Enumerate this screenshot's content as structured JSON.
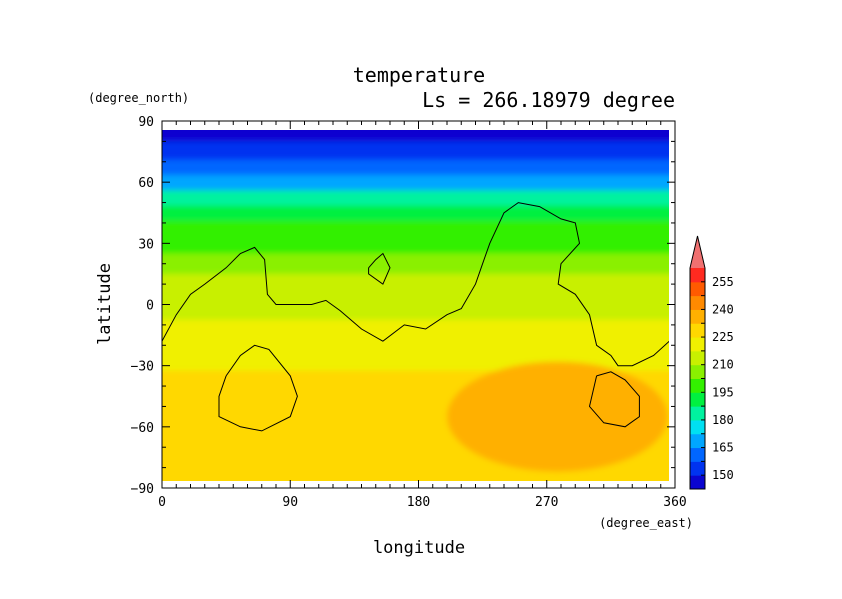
{
  "chart_data": {
    "type": "heatmap",
    "title": "temperature",
    "subtitle": "Ls = 266.18979 degree",
    "xlabel": "longitude",
    "ylabel": "latitude",
    "x_units": "(degree_east)",
    "y_units": "(degree_north)",
    "xlim": [
      0,
      360
    ],
    "ylim": [
      -90,
      90
    ],
    "x_ticks": [
      0,
      90,
      180,
      270,
      360
    ],
    "y_ticks": [
      90,
      60,
      30,
      0,
      -30,
      -60,
      -90
    ],
    "x_tick_labels": [
      "0",
      "90",
      "180",
      "270",
      "360"
    ],
    "y_tick_labels": [
      "90",
      "60",
      "30",
      "0",
      "−30",
      "−60",
      "−90"
    ],
    "colorbar": {
      "labels": [
        "255",
        "240",
        "225",
        "210",
        "195",
        "180",
        "165",
        "150"
      ],
      "min": 142.5,
      "max": 262.5,
      "step": 7.5,
      "extend": "max",
      "colors": [
        "#0a05d0",
        "#0033f0",
        "#0066ff",
        "#00a6ff",
        "#00e0f2",
        "#00f29f",
        "#00f040",
        "#33f000",
        "#8af000",
        "#c8f000",
        "#f0f000",
        "#ffd800",
        "#ffb000",
        "#ff8a00",
        "#ff5a00",
        "#ff2a20"
      ],
      "extend_color": "#f07070"
    },
    "latitude_profile": [
      {
        "lat": 85,
        "value": 145
      },
      {
        "lat": 75,
        "value": 150
      },
      {
        "lat": 67,
        "value": 160
      },
      {
        "lat": 60,
        "value": 170
      },
      {
        "lat": 52,
        "value": 182
      },
      {
        "lat": 45,
        "value": 190
      },
      {
        "lat": 37,
        "value": 197
      },
      {
        "lat": 30,
        "value": 202
      },
      {
        "lat": 20,
        "value": 207
      },
      {
        "lat": 10,
        "value": 211
      },
      {
        "lat": 0,
        "value": 214
      },
      {
        "lat": -15,
        "value": 218
      },
      {
        "lat": -25,
        "value": 224
      },
      {
        "lat": -40,
        "value": 229
      },
      {
        "lat": -60,
        "value": 230
      },
      {
        "lat": -85,
        "value": 229
      }
    ],
    "warm_region": {
      "lon_range": [
        200,
        355
      ],
      "lat_range": [
        -82,
        -28
      ],
      "value": 236
    },
    "topography_contours": [
      [
        [
          0,
          -18
        ],
        [
          10,
          -5
        ],
        [
          20,
          5
        ],
        [
          30,
          10
        ],
        [
          45,
          18
        ],
        [
          55,
          25
        ],
        [
          65,
          28
        ],
        [
          72,
          22
        ],
        [
          74,
          5
        ],
        [
          80,
          0
        ],
        [
          95,
          0
        ],
        [
          105,
          0
        ],
        [
          115,
          2
        ],
        [
          125,
          -3
        ],
        [
          140,
          -12
        ],
        [
          155,
          -18
        ],
        [
          170,
          -10
        ],
        [
          185,
          -12
        ],
        [
          200,
          -5
        ],
        [
          210,
          -2
        ],
        [
          220,
          10
        ],
        [
          225,
          20
        ],
        [
          230,
          30
        ],
        [
          240,
          45
        ],
        [
          250,
          50
        ],
        [
          265,
          48
        ],
        [
          280,
          42
        ],
        [
          290,
          40
        ],
        [
          293,
          30
        ],
        [
          280,
          20
        ],
        [
          278,
          10
        ],
        [
          290,
          5
        ],
        [
          300,
          -5
        ],
        [
          305,
          -20
        ],
        [
          315,
          -25
        ],
        [
          320,
          -30
        ],
        [
          330,
          -30
        ],
        [
          345,
          -25
        ],
        [
          356,
          -18
        ]
      ],
      [
        [
          145,
          18
        ],
        [
          150,
          22
        ],
        [
          155,
          25
        ],
        [
          160,
          18
        ],
        [
          155,
          10
        ],
        [
          145,
          15
        ],
        [
          145,
          18
        ]
      ],
      [
        [
          45,
          -35
        ],
        [
          55,
          -25
        ],
        [
          65,
          -20
        ],
        [
          75,
          -22
        ],
        [
          90,
          -35
        ],
        [
          95,
          -45
        ],
        [
          90,
          -55
        ],
        [
          70,
          -62
        ],
        [
          55,
          -60
        ],
        [
          40,
          -55
        ],
        [
          40,
          -45
        ],
        [
          45,
          -35
        ]
      ],
      [
        [
          305,
          -35
        ],
        [
          315,
          -33
        ],
        [
          325,
          -37
        ],
        [
          335,
          -45
        ],
        [
          335,
          -55
        ],
        [
          325,
          -60
        ],
        [
          310,
          -58
        ],
        [
          300,
          -50
        ],
        [
          305,
          -35
        ]
      ]
    ]
  }
}
